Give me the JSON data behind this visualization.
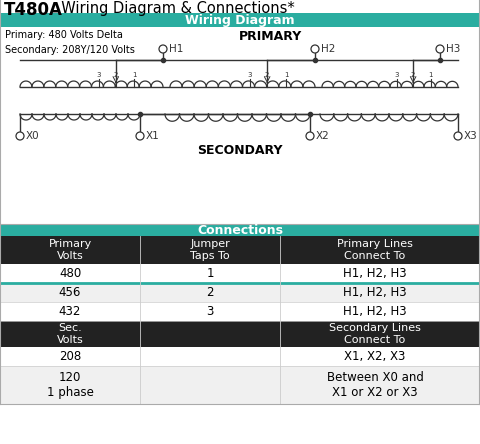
{
  "title_bold": "T480A",
  "title_rest": "  Wiring Diagram & Connections*",
  "section1_header": "Wiring Diagram",
  "section2_header": "Connections",
  "primary_label": "PRIMARY",
  "secondary_label": "SECONDARY",
  "primary_info": "Primary: 480 Volts Delta\nSecondary: 208Y/120 Volts",
  "teal_color": "#2aada0",
  "dark_bg": "#222222",
  "white": "#ffffff",
  "black": "#000000",
  "light_gray": "#f0f0f0",
  "col1_header": "Primary\nVolts",
  "col2_header": "Jumper\nTaps To",
  "col3_header": "Primary Lines\nConnect To",
  "row1": [
    "480",
    "1",
    "H1, H2, H3"
  ],
  "row2": [
    "456",
    "2",
    "H1, H2, H3"
  ],
  "row3": [
    "432",
    "3",
    "H1, H2, H3"
  ],
  "col1b_header": "Sec.\nVolts",
  "col3b_header": "Secondary Lines\nConnect To",
  "row4": [
    "208",
    "",
    "X1, X2, X3"
  ],
  "row5": [
    "120\n1 phase",
    "",
    "Between X0 and\nX1 or X2 or X3"
  ]
}
